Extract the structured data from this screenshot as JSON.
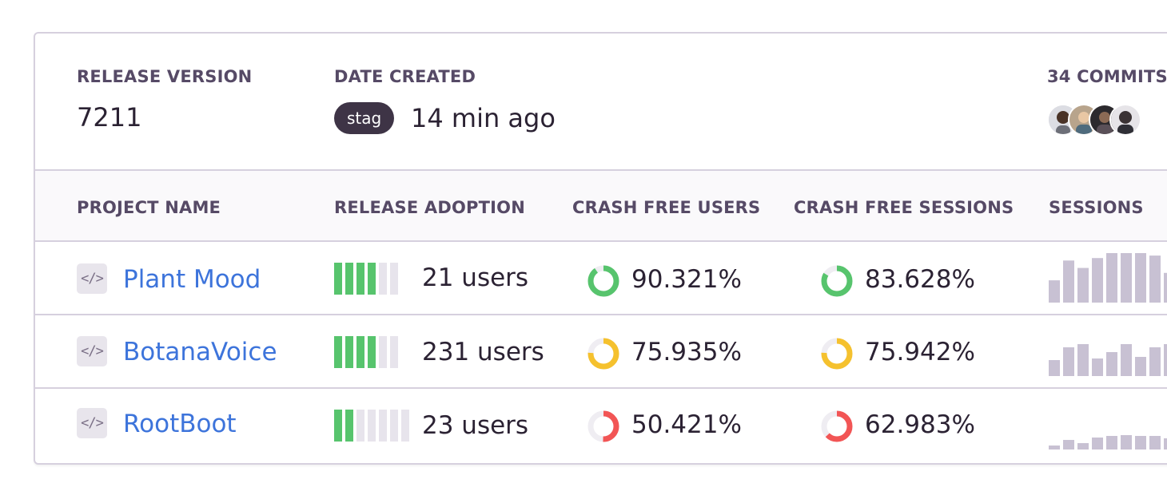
{
  "header": {
    "release_version_label": "RELEASE VERSION",
    "release_version": "7211",
    "date_created_label": "DATE CREATED",
    "environment_badge": "stag",
    "date_created": "14 min ago",
    "commits_label": "34 COMMITS",
    "avatar_count": 4
  },
  "columns": {
    "project_name": "PROJECT NAME",
    "release_adoption": "RELEASE ADOPTION",
    "crash_free_users": "CRASH FREE USERS",
    "crash_free_sessions": "CRASH FREE SESSIONS",
    "sessions": "SESSIONS"
  },
  "colors": {
    "link": "#3d74db",
    "healthy": "#57c46d",
    "warning": "#f5c12e",
    "critical": "#f25555",
    "adoption_on": "#57c46d",
    "adoption_off": "#e7e4ec",
    "sparkline": "#c8c1d3"
  },
  "projects": [
    {
      "name": "Plant Mood",
      "icon": "code-icon",
      "adoption_segments_filled": 4,
      "adoption_segments_total": 6,
      "users": "21 users",
      "crash_free_users": "90.321%",
      "crash_free_users_value": 0.90321,
      "crash_free_users_status": "healthy",
      "crash_free_sessions": "83.628%",
      "crash_free_sessions_value": 0.83628,
      "crash_free_sessions_status": "healthy",
      "sessions_trend": [
        0.45,
        0.85,
        0.7,
        0.9,
        1.0,
        1.0,
        1.0,
        0.95,
        0.6
      ]
    },
    {
      "name": "BotanaVoice",
      "icon": "code-icon",
      "adoption_segments_filled": 4,
      "adoption_segments_total": 6,
      "users": "231 users",
      "crash_free_users": "75.935%",
      "crash_free_users_value": 0.75935,
      "crash_free_users_status": "warning",
      "crash_free_sessions": "75.942%",
      "crash_free_sessions_value": 0.75942,
      "crash_free_sessions_status": "warning",
      "sessions_trend": [
        0.5,
        0.9,
        1.0,
        0.55,
        0.75,
        1.0,
        0.6,
        0.9,
        1.0
      ]
    },
    {
      "name": "RootBoot",
      "icon": "code-icon",
      "adoption_segments_filled": 2,
      "adoption_segments_total": 7,
      "users": "23 users",
      "crash_free_users": "50.421%",
      "crash_free_users_value": 0.50421,
      "crash_free_users_status": "critical",
      "crash_free_sessions": "62.983%",
      "crash_free_sessions_value": 0.62983,
      "crash_free_sessions_status": "critical",
      "sessions_trend": [
        0.25,
        0.6,
        0.4,
        0.75,
        0.85,
        0.9,
        0.85,
        0.85,
        0.7
      ]
    }
  ]
}
